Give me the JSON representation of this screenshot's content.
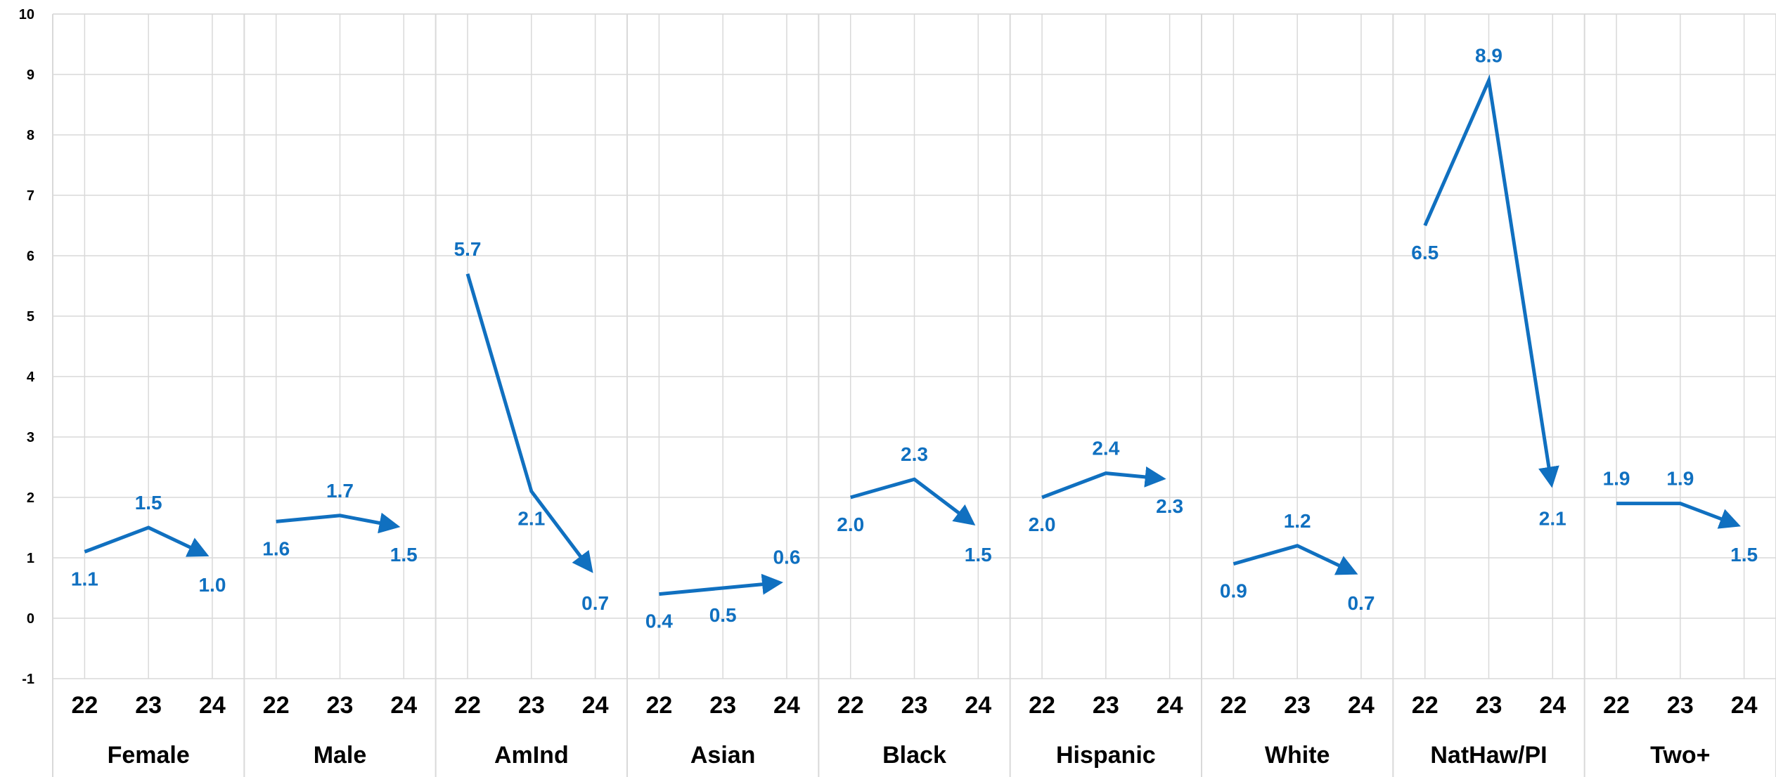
{
  "chart_data": {
    "type": "line",
    "title": "",
    "xlabel": "",
    "ylabel": "",
    "ylim": [
      -1,
      10
    ],
    "yticks": [
      -1,
      0,
      1,
      2,
      3,
      4,
      5,
      6,
      7,
      8,
      9,
      10
    ],
    "grid": true,
    "legend": "none",
    "line_color": "#1070C0",
    "years": [
      "22",
      "23",
      "24"
    ],
    "groups": [
      {
        "label": "Female",
        "values": [
          1.1,
          1.5,
          1.0
        ],
        "value_labels": [
          "1.1",
          "1.5",
          "1.0"
        ]
      },
      {
        "label": "Male",
        "values": [
          1.6,
          1.7,
          1.5
        ],
        "value_labels": [
          "1.6",
          "1.7",
          "1.5"
        ]
      },
      {
        "label": "AmInd",
        "values": [
          5.7,
          2.1,
          0.7
        ],
        "value_labels": [
          "5.7",
          "2.1",
          "0.7"
        ]
      },
      {
        "label": "Asian",
        "values": [
          0.4,
          0.5,
          0.6
        ],
        "value_labels": [
          "0.4",
          "0.5",
          "0.6"
        ]
      },
      {
        "label": "Black",
        "values": [
          2.0,
          2.3,
          1.5
        ],
        "value_labels": [
          "2.0",
          "2.3",
          "1.5"
        ]
      },
      {
        "label": "Hispanic",
        "values": [
          2.0,
          2.4,
          2.3
        ],
        "value_labels": [
          "2.0",
          "2.4",
          "2.3"
        ]
      },
      {
        "label": "White",
        "values": [
          0.9,
          1.2,
          0.7
        ],
        "value_labels": [
          "0.9",
          "1.2",
          "0.7"
        ]
      },
      {
        "label": "NatHaw/PI",
        "values": [
          6.5,
          8.9,
          2.1
        ],
        "value_labels": [
          "6.5",
          "8.9",
          "2.1"
        ]
      },
      {
        "label": "Two+",
        "values": [
          1.9,
          1.9,
          1.5
        ],
        "value_labels": [
          "1.9",
          "1.9",
          "1.5"
        ]
      }
    ]
  }
}
